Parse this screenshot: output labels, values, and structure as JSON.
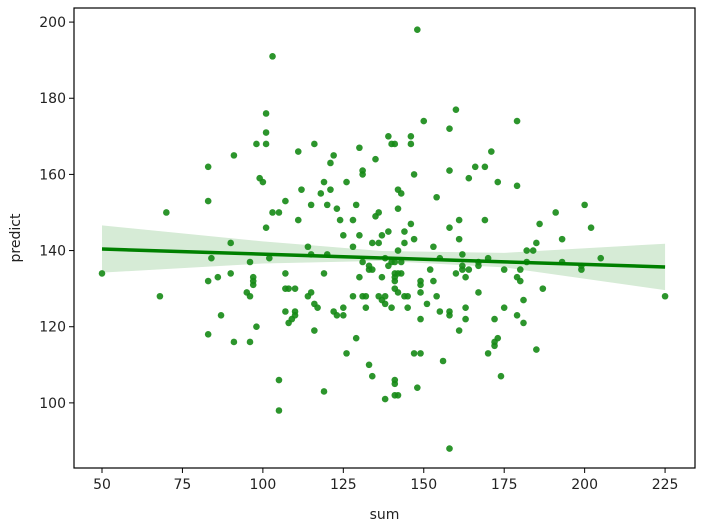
{
  "chart_data": {
    "type": "scatter",
    "xlabel": "sum",
    "ylabel": "predict",
    "xlim": [
      41.3,
      234.3
    ],
    "ylim": [
      82.9,
      203.7
    ],
    "xticks": [
      50,
      75,
      100,
      125,
      150,
      175,
      200,
      225
    ],
    "yticks": [
      100,
      120,
      140,
      160,
      180,
      200
    ],
    "grid": false,
    "colors": {
      "points": "#158a15",
      "line": "#008000",
      "band": "#d6ebd6"
    },
    "points": [
      [
        50,
        134
      ],
      [
        68,
        128
      ],
      [
        70,
        150
      ],
      [
        83,
        162
      ],
      [
        83,
        153
      ],
      [
        83,
        132
      ],
      [
        83,
        118
      ],
      [
        84,
        138
      ],
      [
        86,
        133
      ],
      [
        87,
        123
      ],
      [
        90,
        142
      ],
      [
        90,
        134
      ],
      [
        91,
        165
      ],
      [
        91,
        116
      ],
      [
        95,
        129
      ],
      [
        96,
        128
      ],
      [
        96,
        137
      ],
      [
        96,
        116
      ],
      [
        97,
        133
      ],
      [
        97,
        131
      ],
      [
        97,
        132
      ],
      [
        98,
        120
      ],
      [
        98,
        168
      ],
      [
        99,
        159
      ],
      [
        100,
        158
      ],
      [
        101,
        168
      ],
      [
        101,
        171
      ],
      [
        101,
        146
      ],
      [
        101,
        176
      ],
      [
        102,
        138
      ],
      [
        103,
        191
      ],
      [
        103,
        150
      ],
      [
        105,
        150
      ],
      [
        105,
        106
      ],
      [
        105,
        98
      ],
      [
        107,
        134
      ],
      [
        107,
        130
      ],
      [
        108,
        130
      ],
      [
        110,
        130
      ],
      [
        107,
        153
      ],
      [
        107,
        124
      ],
      [
        108,
        121
      ],
      [
        109,
        122
      ],
      [
        110,
        124
      ],
      [
        110,
        123
      ],
      [
        111,
        166
      ],
      [
        111,
        148
      ],
      [
        112,
        156
      ],
      [
        114,
        141
      ],
      [
        114,
        128
      ],
      [
        115,
        129
      ],
      [
        115,
        152
      ],
      [
        115,
        139
      ],
      [
        116,
        119
      ],
      [
        116,
        126
      ],
      [
        116,
        168
      ],
      [
        117,
        125
      ],
      [
        118,
        155
      ],
      [
        119,
        103
      ],
      [
        119,
        158
      ],
      [
        119,
        134
      ],
      [
        120,
        139
      ],
      [
        121,
        163
      ],
      [
        120,
        152
      ],
      [
        121,
        156
      ],
      [
        122,
        165
      ],
      [
        123,
        151
      ],
      [
        122,
        124
      ],
      [
        123,
        123
      ],
      [
        124,
        148
      ],
      [
        125,
        144
      ],
      [
        125,
        125
      ],
      [
        126,
        158
      ],
      [
        125,
        123
      ],
      [
        126,
        113
      ],
      [
        128,
        148
      ],
      [
        128,
        141
      ],
      [
        128,
        128
      ],
      [
        129,
        152
      ],
      [
        129,
        117
      ],
      [
        130,
        167
      ],
      [
        130,
        144
      ],
      [
        130,
        133
      ],
      [
        131,
        137
      ],
      [
        131,
        128
      ],
      [
        131,
        161
      ],
      [
        131,
        160
      ],
      [
        132,
        128
      ],
      [
        132,
        125
      ],
      [
        133,
        136
      ],
      [
        133,
        135
      ],
      [
        133,
        110
      ],
      [
        134,
        107
      ],
      [
        134,
        135
      ],
      [
        134,
        142
      ],
      [
        135,
        164
      ],
      [
        135,
        149
      ],
      [
        136,
        150
      ],
      [
        136,
        142
      ],
      [
        136,
        128
      ],
      [
        137,
        144
      ],
      [
        137,
        133
      ],
      [
        137,
        127
      ],
      [
        138,
        101
      ],
      [
        138,
        138
      ],
      [
        139,
        170
      ],
      [
        139,
        145
      ],
      [
        140,
        168
      ],
      [
        140,
        137
      ],
      [
        141,
        134
      ],
      [
        141,
        106
      ],
      [
        141,
        102
      ],
      [
        141,
        168
      ],
      [
        142,
        151
      ],
      [
        142,
        140
      ],
      [
        142,
        156
      ],
      [
        143,
        137
      ],
      [
        143,
        134
      ],
      [
        144,
        142
      ],
      [
        144,
        145
      ],
      [
        145,
        125
      ],
      [
        145,
        128
      ],
      [
        146,
        170
      ],
      [
        146,
        147
      ],
      [
        147,
        143
      ],
      [
        149,
        132
      ],
      [
        149,
        122
      ],
      [
        149,
        129
      ],
      [
        149,
        113
      ],
      [
        148,
        198
      ],
      [
        160,
        177
      ],
      [
        150,
        174
      ],
      [
        158,
        172
      ],
      [
        179,
        174
      ],
      [
        146,
        168
      ],
      [
        171,
        166
      ],
      [
        166,
        162
      ],
      [
        169,
        162
      ],
      [
        147,
        160
      ],
      [
        158,
        161
      ],
      [
        164,
        159
      ],
      [
        173,
        158
      ],
      [
        179,
        157
      ],
      [
        143,
        155
      ],
      [
        154,
        154
      ],
      [
        200,
        152
      ],
      [
        191,
        150
      ],
      [
        161,
        148
      ],
      [
        169,
        148
      ],
      [
        186,
        147
      ],
      [
        202,
        146
      ],
      [
        158,
        146
      ],
      [
        153,
        141
      ],
      [
        161,
        143
      ],
      [
        162,
        139
      ],
      [
        185,
        142
      ],
      [
        182,
        140
      ],
      [
        184,
        140
      ],
      [
        193,
        143
      ],
      [
        205,
        138
      ],
      [
        193,
        137
      ],
      [
        199,
        135
      ],
      [
        199,
        136
      ],
      [
        182,
        137
      ],
      [
        170,
        138
      ],
      [
        167,
        137
      ],
      [
        167,
        136
      ],
      [
        162,
        136
      ],
      [
        162,
        135
      ],
      [
        164,
        135
      ],
      [
        160,
        134
      ],
      [
        163,
        133
      ],
      [
        155,
        138
      ],
      [
        152,
        135
      ],
      [
        153,
        132
      ],
      [
        149,
        131
      ],
      [
        142,
        134
      ],
      [
        141,
        133
      ],
      [
        141,
        132
      ],
      [
        139,
        136
      ],
      [
        141,
        137
      ],
      [
        141,
        130
      ],
      [
        142,
        129
      ],
      [
        138,
        128
      ],
      [
        144,
        128
      ],
      [
        138,
        126
      ],
      [
        140,
        125
      ],
      [
        151,
        126
      ],
      [
        154,
        128
      ],
      [
        155,
        124
      ],
      [
        158,
        124
      ],
      [
        158,
        123
      ],
      [
        163,
        125
      ],
      [
        163,
        122
      ],
      [
        161,
        119
      ],
      [
        167,
        129
      ],
      [
        175,
        135
      ],
      [
        180,
        135
      ],
      [
        179,
        133
      ],
      [
        180,
        132
      ],
      [
        187,
        130
      ],
      [
        181,
        127
      ],
      [
        175,
        125
      ],
      [
        172,
        122
      ],
      [
        179,
        123
      ],
      [
        181,
        121
      ],
      [
        173,
        117
      ],
      [
        172,
        116
      ],
      [
        172,
        115
      ],
      [
        170,
        113
      ],
      [
        185,
        114
      ],
      [
        147,
        113
      ],
      [
        156,
        111
      ],
      [
        174,
        107
      ],
      [
        141,
        105
      ],
      [
        148,
        104
      ],
      [
        142,
        102
      ],
      [
        158,
        88
      ],
      [
        225,
        128
      ]
    ],
    "regression": {
      "x": [
        50,
        225
      ],
      "y": [
        140.4,
        135.7
      ]
    },
    "confidence_band": {
      "x": [
        50,
        100,
        137,
        175,
        225
      ],
      "lower": [
        134.2,
        136.6,
        137.3,
        135.6,
        129.6
      ],
      "upper": [
        146.6,
        142.4,
        139.9,
        139.4,
        141.8
      ]
    }
  }
}
